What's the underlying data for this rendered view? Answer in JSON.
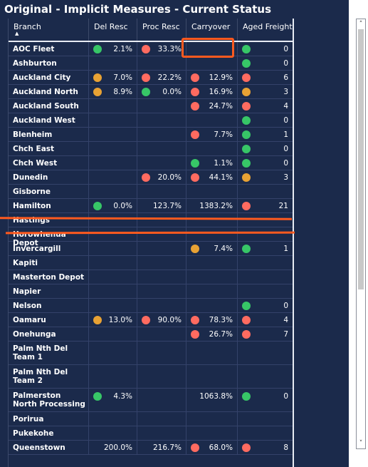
{
  "title": "Original - Implicit Measures - Current Status",
  "colors": {
    "green": "#37c667",
    "red": "#ff6b60",
    "amber": "#e8a234",
    "annotation": "#ff5a1f"
  },
  "columns": [
    "Branch",
    "Del Resc",
    "Proc Resc",
    "Carryover",
    "Aged Freight"
  ],
  "sort_indicator": "▲",
  "rows": [
    {
      "branch": "AOC Fleet",
      "del": {
        "status": "green",
        "value": "2.1%"
      },
      "proc": {
        "status": "red",
        "value": "33.3%"
      },
      "carry": null,
      "aged": {
        "status": "green",
        "value": "0"
      }
    },
    {
      "branch": "Ashburton",
      "del": null,
      "proc": null,
      "carry": null,
      "aged": {
        "status": "green",
        "value": "0"
      }
    },
    {
      "branch": "Auckland City",
      "del": {
        "status": "amber",
        "value": "7.0%"
      },
      "proc": {
        "status": "red",
        "value": "22.2%"
      },
      "carry": {
        "status": "red",
        "value": "12.9%"
      },
      "aged": {
        "status": "red",
        "value": "6"
      }
    },
    {
      "branch": "Auckland North",
      "del": {
        "status": "amber",
        "value": "8.9%"
      },
      "proc": {
        "status": "green",
        "value": "0.0%"
      },
      "carry": {
        "status": "red",
        "value": "16.9%"
      },
      "aged": {
        "status": "amber",
        "value": "3"
      }
    },
    {
      "branch": "Auckland South",
      "del": null,
      "proc": null,
      "carry": {
        "status": "red",
        "value": "24.7%"
      },
      "aged": {
        "status": "red",
        "value": "4"
      }
    },
    {
      "branch": "Auckland West",
      "del": null,
      "proc": null,
      "carry": null,
      "aged": {
        "status": "green",
        "value": "0"
      }
    },
    {
      "branch": "Blenheim",
      "del": null,
      "proc": null,
      "carry": {
        "status": "red",
        "value": "7.7%"
      },
      "aged": {
        "status": "green",
        "value": "1"
      }
    },
    {
      "branch": "Chch East",
      "del": null,
      "proc": null,
      "carry": null,
      "aged": {
        "status": "green",
        "value": "0"
      }
    },
    {
      "branch": "Chch West",
      "del": null,
      "proc": null,
      "carry": {
        "status": "green",
        "value": "1.1%"
      },
      "aged": {
        "status": "green",
        "value": "0"
      }
    },
    {
      "branch": "Dunedin",
      "del": null,
      "proc": {
        "status": "red",
        "value": "20.0%"
      },
      "carry": {
        "status": "red",
        "value": "44.1%"
      },
      "aged": {
        "status": "amber",
        "value": "3"
      }
    },
    {
      "branch": "Gisborne",
      "del": null,
      "proc": null,
      "carry": null,
      "aged": null
    },
    {
      "branch": "Hamilton",
      "del": {
        "status": "green",
        "value": "0.0%"
      },
      "proc": {
        "status": "none",
        "value": "123.7%"
      },
      "carry": {
        "status": "none",
        "value": "1383.2%"
      },
      "aged": {
        "status": "red",
        "value": "21"
      }
    },
    {
      "branch": "Hastings",
      "del": null,
      "proc": null,
      "carry": null,
      "aged": null
    },
    {
      "branch": "Horowhenua Depot",
      "del": null,
      "proc": null,
      "carry": null,
      "aged": null
    },
    {
      "branch": "Invercargill",
      "del": null,
      "proc": null,
      "carry": {
        "status": "amber",
        "value": "7.4%"
      },
      "aged": {
        "status": "green",
        "value": "1"
      }
    },
    {
      "branch": "Kapiti",
      "del": null,
      "proc": null,
      "carry": null,
      "aged": null
    },
    {
      "branch": "Masterton Depot",
      "del": null,
      "proc": null,
      "carry": null,
      "aged": null
    },
    {
      "branch": "Napier",
      "del": null,
      "proc": null,
      "carry": null,
      "aged": null
    },
    {
      "branch": "Nelson",
      "del": null,
      "proc": null,
      "carry": null,
      "aged": {
        "status": "green",
        "value": "0"
      }
    },
    {
      "branch": "Oamaru",
      "del": {
        "status": "amber",
        "value": "13.0%"
      },
      "proc": {
        "status": "red",
        "value": "90.0%"
      },
      "carry": {
        "status": "red",
        "value": "78.3%"
      },
      "aged": {
        "status": "red",
        "value": "4"
      }
    },
    {
      "branch": "Onehunga",
      "del": null,
      "proc": null,
      "carry": {
        "status": "red",
        "value": "26.7%"
      },
      "aged": {
        "status": "red",
        "value": "7"
      }
    },
    {
      "branch": "Palm Nth Del Team 1",
      "del": null,
      "proc": null,
      "carry": null,
      "aged": null
    },
    {
      "branch": "Palm Nth Del Team 2",
      "del": null,
      "proc": null,
      "carry": null,
      "aged": null
    },
    {
      "branch": "Palmerston North Processing",
      "del": {
        "status": "green",
        "value": "4.3%"
      },
      "proc": null,
      "carry": {
        "status": "none",
        "value": "1063.8%"
      },
      "aged": {
        "status": "green",
        "value": "0"
      }
    },
    {
      "branch": "Porirua",
      "del": null,
      "proc": null,
      "carry": null,
      "aged": null
    },
    {
      "branch": "Pukekohe",
      "del": null,
      "proc": null,
      "carry": null,
      "aged": null
    },
    {
      "branch": "Queenstown",
      "del": {
        "status": "none",
        "value": "200.0%"
      },
      "proc": {
        "status": "none",
        "value": "216.7%"
      },
      "carry": {
        "status": "red",
        "value": "68.0%"
      },
      "aged": {
        "status": "red",
        "value": "8"
      }
    }
  ],
  "scrollbar": {
    "up_arrow": "˄",
    "down_arrow": "˅"
  }
}
